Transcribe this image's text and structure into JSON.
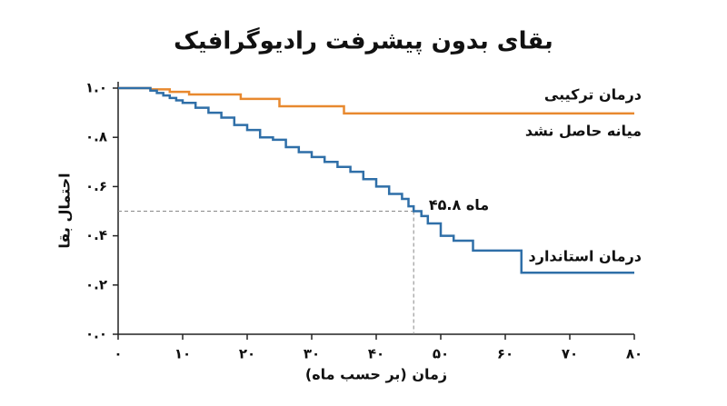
{
  "chart_data": {
    "type": "step",
    "title": "بقای بدون پیشرفت رادیوگرافیک",
    "x_label": "زمان (بر حسب ماه)",
    "y_label": "احتمال بقا",
    "xlim": [
      0,
      80
    ],
    "ylim": [
      0,
      1
    ],
    "xticks": [
      {
        "value": 0,
        "label": "۰"
      },
      {
        "value": 10,
        "label": "۱۰"
      },
      {
        "value": 20,
        "label": "۲۰"
      },
      {
        "value": 30,
        "label": "۳۰"
      },
      {
        "value": 40,
        "label": "۴۰"
      },
      {
        "value": 50,
        "label": "۵۰"
      },
      {
        "value": 60,
        "label": "۶۰"
      },
      {
        "value": 70,
        "label": "۷۰"
      },
      {
        "value": 80,
        "label": "۸۰"
      }
    ],
    "yticks": [
      {
        "value": 0,
        "label": "۰.۰"
      },
      {
        "value": 0.2,
        "label": "۰.۲"
      },
      {
        "value": 0.4,
        "label": "۰.۴"
      },
      {
        "value": 0.6,
        "label": "۰.۶"
      },
      {
        "value": 0.8,
        "label": "۰.۸"
      },
      {
        "value": 1,
        "label": "۱.۰"
      }
    ],
    "series": [
      {
        "name": "درمان ترکیبی",
        "color": "#e8892f",
        "note": "میانه حاصل نشد",
        "x": [
          0,
          5,
          8,
          11,
          19,
          25,
          35,
          80
        ],
        "values": [
          1.0,
          0.995,
          0.985,
          0.974,
          0.956,
          0.926,
          0.897,
          0.897
        ]
      },
      {
        "name": "درمان استاندارد",
        "color": "#2f6fa8",
        "x": [
          0,
          5,
          6,
          7,
          8,
          9,
          10,
          12,
          14,
          16,
          18,
          20,
          22,
          24,
          26,
          28,
          30,
          32,
          34,
          36,
          38,
          40,
          42,
          44,
          45,
          45.8,
          47,
          48,
          50,
          52,
          55,
          62.5,
          80
        ],
        "values": [
          1.0,
          0.99,
          0.98,
          0.97,
          0.96,
          0.95,
          0.94,
          0.92,
          0.9,
          0.88,
          0.85,
          0.83,
          0.8,
          0.79,
          0.76,
          0.74,
          0.72,
          0.7,
          0.68,
          0.66,
          0.63,
          0.6,
          0.57,
          0.55,
          0.52,
          0.5,
          0.48,
          0.45,
          0.4,
          0.38,
          0.34,
          0.25,
          0.25
        ]
      }
    ],
    "median": {
      "x": 45.8,
      "y": 0.5,
      "label": "۴۵.۸ ماه"
    }
  }
}
